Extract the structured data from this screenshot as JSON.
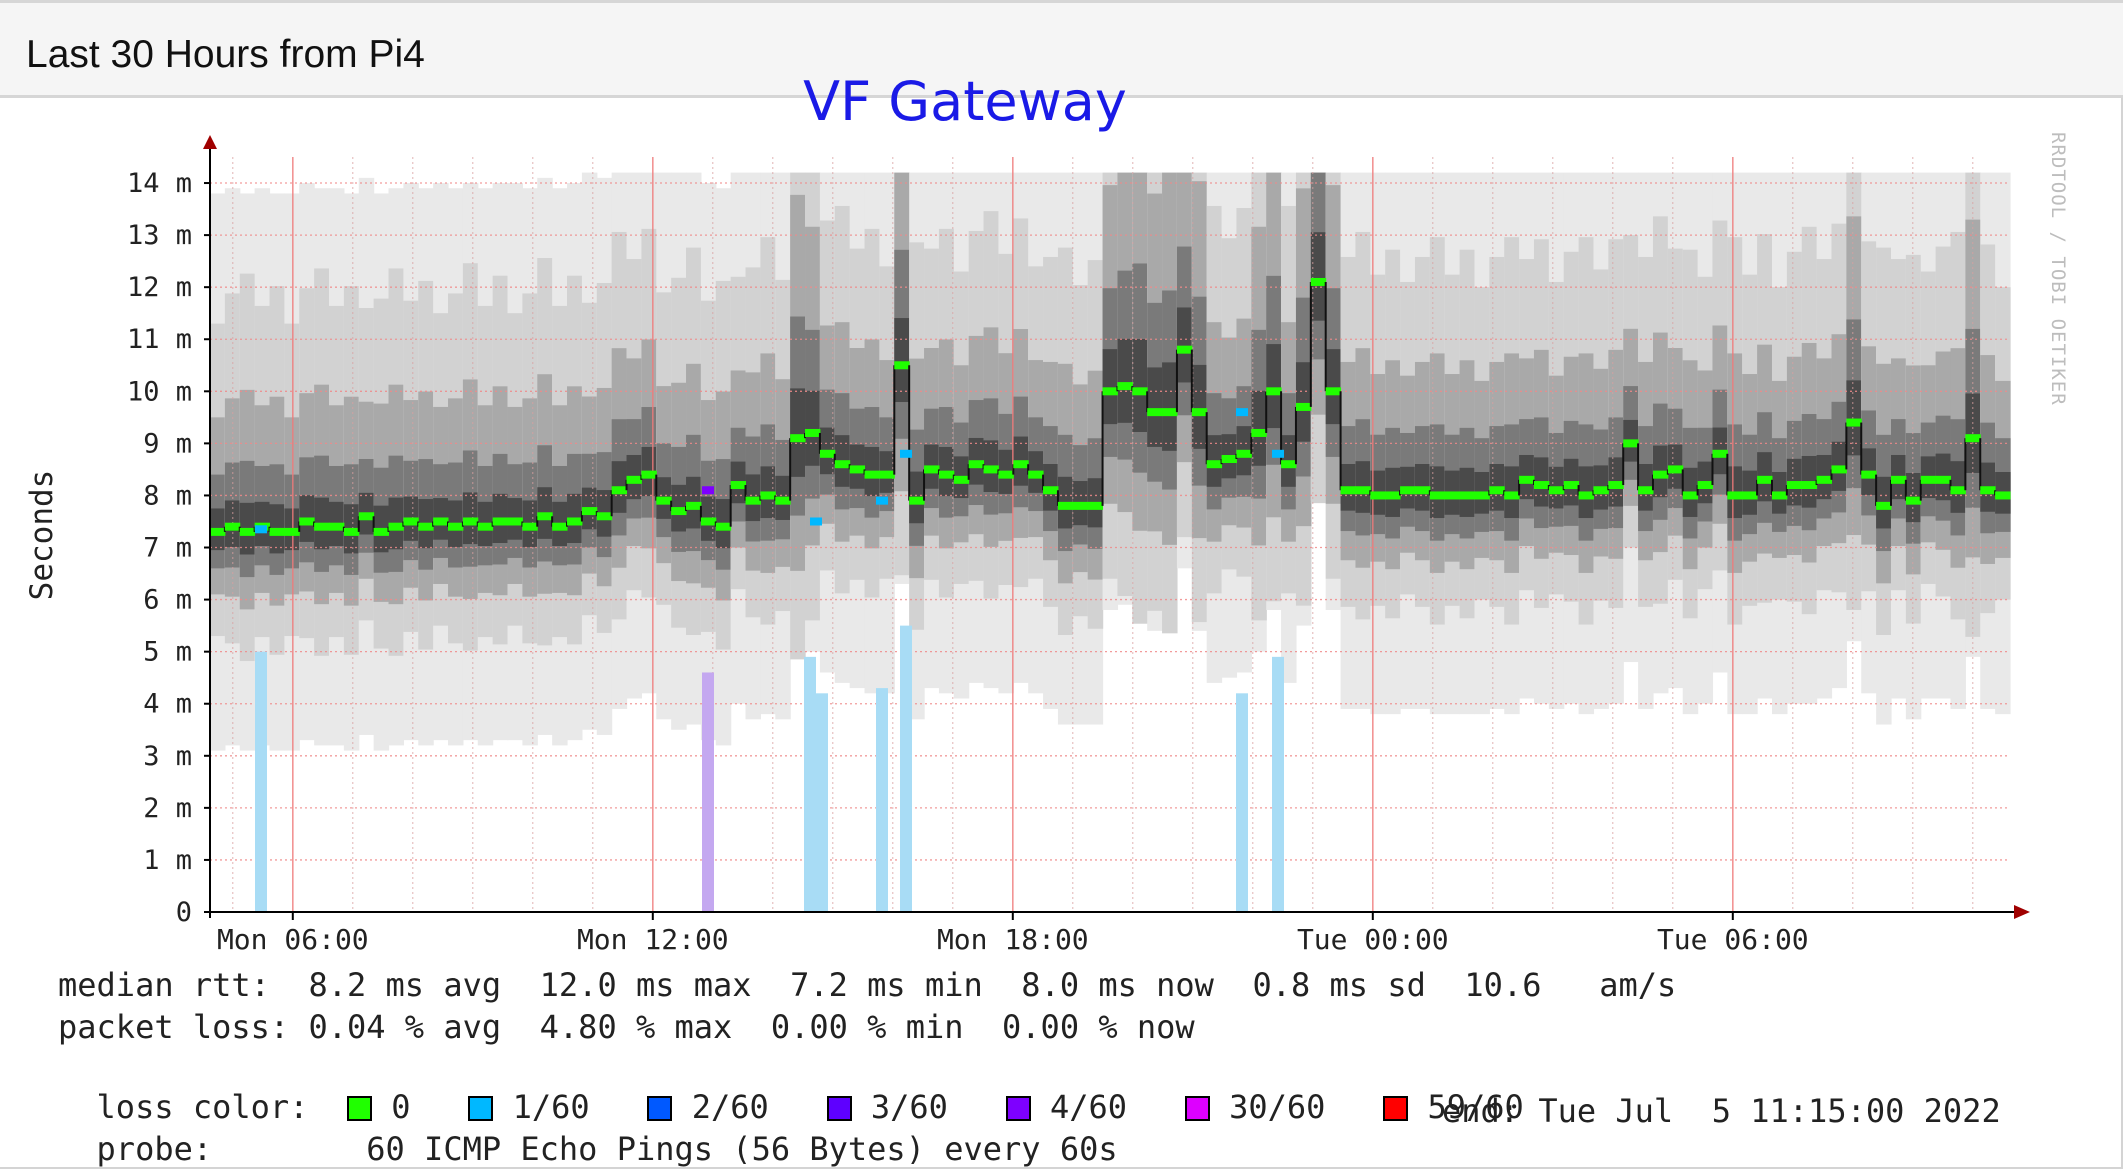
{
  "header": {
    "title": "Last 30 Hours from Pi4"
  },
  "chart_data": {
    "type": "line",
    "title": "VF Gateway",
    "ylabel": "Seconds",
    "watermark": "RRDTOOL / TOBI OETIKER",
    "ylim": [
      0,
      14.5
    ],
    "y_ticks": [
      {
        "v": 0,
        "label": "0"
      },
      {
        "v": 1,
        "label": "1 m"
      },
      {
        "v": 2,
        "label": "2 m"
      },
      {
        "v": 3,
        "label": "3 m"
      },
      {
        "v": 4,
        "label": "4 m"
      },
      {
        "v": 5,
        "label": "5 m"
      },
      {
        "v": 6,
        "label": "6 m"
      },
      {
        "v": 7,
        "label": "7 m"
      },
      {
        "v": 8,
        "label": "8 m"
      },
      {
        "v": 9,
        "label": "9 m"
      },
      {
        "v": 10,
        "label": "10 m"
      },
      {
        "v": 11,
        "label": "11 m"
      },
      {
        "v": 12,
        "label": "12 m"
      },
      {
        "v": 13,
        "label": "13 m"
      },
      {
        "v": 14,
        "label": "14 m"
      }
    ],
    "x_units": "hours since Mon 04:37",
    "xlim": [
      0,
      30
    ],
    "x_ticks": [
      {
        "h": 1.38,
        "label": "Mon 06:00"
      },
      {
        "h": 7.38,
        "label": "Mon 12:00"
      },
      {
        "h": 13.38,
        "label": "Mon 18:00"
      },
      {
        "h": 19.38,
        "label": "Tue 00:00"
      },
      {
        "h": 25.38,
        "label": "Tue 06:00"
      }
    ],
    "median_ms": [
      7.3,
      7.4,
      7.3,
      7.4,
      7.3,
      7.3,
      7.5,
      7.4,
      7.4,
      7.3,
      7.6,
      7.3,
      7.4,
      7.5,
      7.4,
      7.5,
      7.4,
      7.5,
      7.4,
      7.5,
      7.5,
      7.4,
      7.6,
      7.4,
      7.5,
      7.7,
      7.6,
      8.1,
      8.3,
      8.4,
      7.9,
      7.7,
      7.8,
      7.5,
      7.4,
      8.2,
      7.9,
      8.0,
      7.9,
      9.1,
      9.2,
      8.8,
      8.6,
      8.5,
      8.4,
      8.4,
      10.5,
      7.9,
      8.5,
      8.4,
      8.3,
      8.6,
      8.5,
      8.4,
      8.6,
      8.4,
      8.1,
      7.8,
      7.8,
      7.8,
      10.0,
      10.1,
      10.0,
      9.6,
      9.6,
      10.8,
      9.6,
      8.6,
      8.7,
      8.8,
      9.2,
      10.0,
      8.6,
      9.7,
      12.1,
      10.0,
      8.1,
      8.1,
      8.0,
      8.0,
      8.1,
      8.1,
      8.0,
      8.0,
      8.0,
      8.0,
      8.1,
      8.0,
      8.3,
      8.2,
      8.1,
      8.2,
      8.0,
      8.1,
      8.2,
      9.0,
      8.1,
      8.4,
      8.5,
      8.0,
      8.2,
      8.8,
      8.0,
      8.0,
      8.3,
      8.0,
      8.2,
      8.2,
      8.3,
      8.5,
      9.4,
      8.4,
      7.8,
      8.3,
      7.9,
      8.3,
      8.3,
      8.1,
      9.1,
      8.1,
      8.0
    ],
    "loss_bars": [
      {
        "h": 0.85,
        "value": 5.0,
        "loss": "1/60"
      },
      {
        "h": 8.3,
        "value": 4.6,
        "loss": "30/60"
      },
      {
        "h": 10.0,
        "value": 4.9,
        "loss": "1/60"
      },
      {
        "h": 10.2,
        "value": 4.2,
        "loss": "1/60"
      },
      {
        "h": 11.2,
        "value": 4.3,
        "loss": "1/60"
      },
      {
        "h": 11.6,
        "value": 5.5,
        "loss": "1/60"
      },
      {
        "h": 17.2,
        "value": 4.2,
        "loss": "1/60"
      },
      {
        "h": 17.8,
        "value": 4.9,
        "loss": "1/60"
      }
    ],
    "loss_markers": [
      {
        "h": 0.85,
        "value": 7.35,
        "loss": "1/60"
      },
      {
        "h": 8.3,
        "value": 8.1,
        "loss": "4/60"
      },
      {
        "h": 10.1,
        "value": 7.5,
        "loss": "1/60"
      },
      {
        "h": 11.2,
        "value": 7.9,
        "loss": "1/60"
      },
      {
        "h": 11.6,
        "value": 8.8,
        "loss": "1/60"
      },
      {
        "h": 17.2,
        "value": 9.6,
        "loss": "1/60"
      },
      {
        "h": 17.8,
        "value": 8.8,
        "loss": "1/60"
      }
    ],
    "stats": {
      "median_rtt": "median rtt:  8.2 ms avg  12.0 ms max  7.2 ms min  8.0 ms now  0.8 ms sd  10.6   am/s",
      "packet_loss": "packet loss: 0.04 % avg  4.80 % max  0.00 % min  0.00 % now",
      "loss_color_label": "loss color:",
      "probe_label": "probe:",
      "probe_text": "60 ICMP Echo Pings (56 Bytes) every 60s",
      "end_text": "end: Tue Jul  5 11:15:00 2022"
    },
    "loss_colors": [
      {
        "label": "0",
        "color": "#20ff00"
      },
      {
        "label": "1/60",
        "color": "#00b8ff"
      },
      {
        "label": "2/60",
        "color": "#0059ff"
      },
      {
        "label": "3/60",
        "color": "#5e00ff"
      },
      {
        "label": "4/60",
        "color": "#7e00ff"
      },
      {
        "label": "30/60",
        "color": "#dd00ff"
      },
      {
        "label": "59/60",
        "color": "#ff0000"
      }
    ]
  }
}
